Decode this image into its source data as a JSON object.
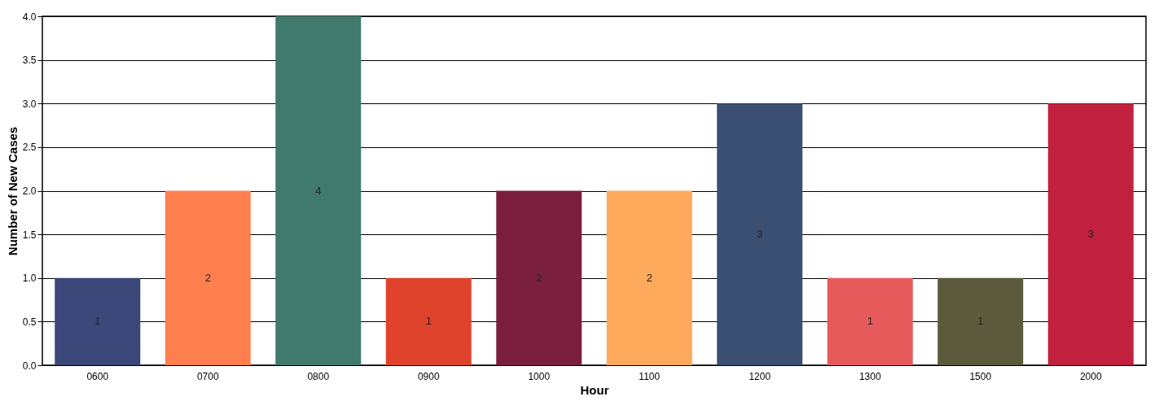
{
  "chart_data": {
    "type": "bar",
    "xlabel": "Hour",
    "ylabel": "Number of New Cases",
    "categories": [
      "0600",
      "0700",
      "0800",
      "0900",
      "1000",
      "1100",
      "1200",
      "1300",
      "1500",
      "2000"
    ],
    "values": [
      1,
      2,
      4,
      1,
      2,
      2,
      3,
      1,
      1,
      3
    ],
    "colors": [
      "#3b4778",
      "#ff7f4f",
      "#3f7a6c",
      "#e0432c",
      "#7b1f3e",
      "#ffa95c",
      "#3a4f72",
      "#e65a5c",
      "#5b5a3c",
      "#c1213e"
    ],
    "ylim": [
      0,
      4
    ],
    "yticks": [
      {
        "value": 0,
        "label": "0.0"
      },
      {
        "value": 0.5,
        "label": "0.5"
      },
      {
        "value": 1,
        "label": "1.0"
      },
      {
        "value": 1.5,
        "label": "1.5"
      },
      {
        "value": 2,
        "label": "2.0"
      },
      {
        "value": 2.5,
        "label": "2.5"
      },
      {
        "value": 3,
        "label": "3.0"
      },
      {
        "value": 3.5,
        "label": "3.5"
      },
      {
        "value": 4,
        "label": "4.0"
      }
    ],
    "grid": "y",
    "data_labels": true
  }
}
